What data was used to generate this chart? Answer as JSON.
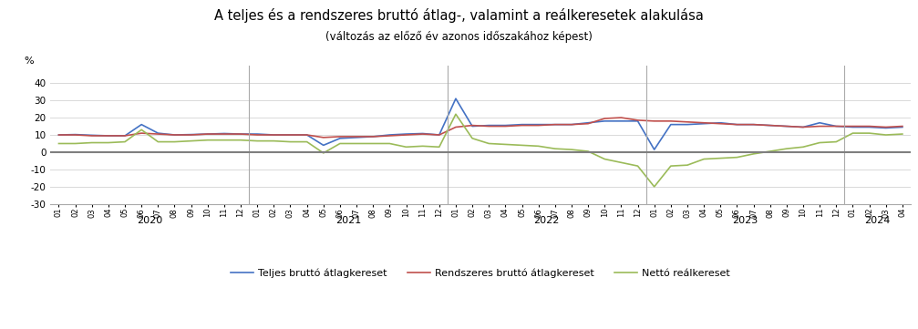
{
  "title": "A teljes és a rendszeres bruttó átlag-, valamint a reálkeresetek alakulása",
  "subtitle": "(változás az előző év azonos időszakához képest)",
  "ylabel": "%",
  "ylim": [
    -30,
    50
  ],
  "yticks": [
    -30,
    -20,
    -10,
    0,
    10,
    20,
    30,
    40
  ],
  "background_color": "#ffffff",
  "grid_color": "#d9d9d9",
  "zero_line_color": "#7f7f7f",
  "title_fontsize": 10.5,
  "subtitle_fontsize": 8.5,
  "years": [
    "2020",
    "2021",
    "2022",
    "2023",
    "2024"
  ],
  "months_per_year": [
    12,
    12,
    12,
    12,
    4
  ],
  "labels": {
    "teljes": "Teljes bruttó átlagkereset",
    "rendszeres": "Rendszeres bruttó átlagkereset",
    "real": "Nettó reálkereset"
  },
  "colors": {
    "teljes": "#4472c4",
    "rendszeres": "#c0504d",
    "real": "#9bbb59"
  },
  "teljes": [
    10.0,
    10.2,
    9.8,
    9.5,
    9.5,
    16.0,
    11.0,
    10.0,
    10.2,
    10.5,
    10.8,
    10.5,
    10.5,
    10.0,
    10.0,
    10.0,
    4.0,
    8.0,
    8.5,
    9.0,
    10.0,
    10.5,
    10.8,
    10.0,
    31.0,
    15.0,
    15.5,
    15.5,
    16.0,
    16.0,
    16.0,
    16.0,
    17.0,
    18.0,
    18.0,
    18.0,
    1.5,
    16.0,
    16.0,
    16.5,
    17.0,
    16.0,
    16.0,
    15.5,
    15.0,
    14.5,
    17.0,
    15.0,
    14.5,
    14.5,
    14.0,
    14.5
  ],
  "rendszeres": [
    10.0,
    10.0,
    9.5,
    9.5,
    9.5,
    11.0,
    10.5,
    10.0,
    10.0,
    10.5,
    10.5,
    10.5,
    10.0,
    10.0,
    10.0,
    10.0,
    8.5,
    9.0,
    9.0,
    9.0,
    9.5,
    10.0,
    10.5,
    10.0,
    14.5,
    15.5,
    15.0,
    15.0,
    15.5,
    15.5,
    16.0,
    16.0,
    16.5,
    19.5,
    20.0,
    18.5,
    18.0,
    18.0,
    17.5,
    17.0,
    16.5,
    16.0,
    16.0,
    15.5,
    15.0,
    14.5,
    15.0,
    15.0,
    15.0,
    15.0,
    14.5,
    15.0
  ],
  "real": [
    5.0,
    5.0,
    5.5,
    5.5,
    6.0,
    13.0,
    6.0,
    6.0,
    6.5,
    7.0,
    7.0,
    7.0,
    6.5,
    6.5,
    6.0,
    6.0,
    -0.5,
    5.0,
    5.0,
    5.0,
    5.0,
    3.0,
    3.5,
    3.0,
    22.0,
    8.0,
    5.0,
    4.5,
    4.0,
    3.5,
    2.0,
    1.5,
    0.5,
    -4.0,
    -6.0,
    -8.0,
    -20.0,
    -8.0,
    -7.5,
    -4.0,
    -3.5,
    -3.0,
    -1.0,
    0.5,
    2.0,
    3.0,
    5.5,
    6.0,
    11.0,
    11.0,
    10.0,
    10.5
  ]
}
